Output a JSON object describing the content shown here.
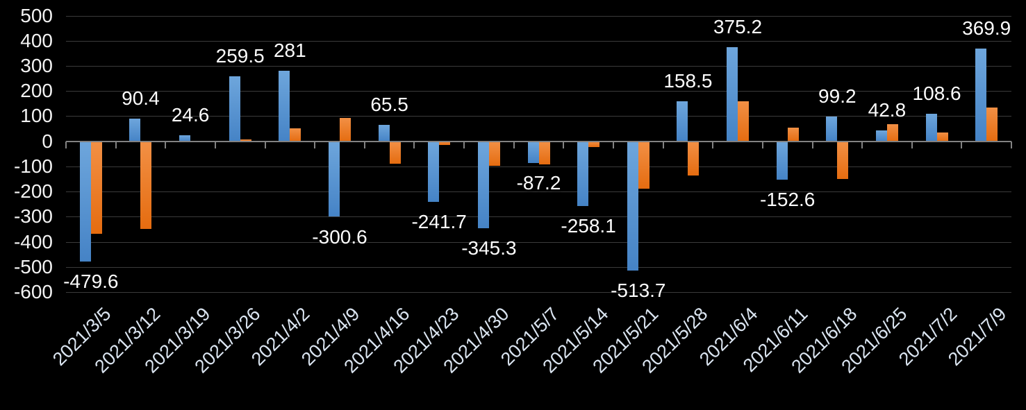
{
  "chart_data": {
    "type": "bar",
    "title": "",
    "legend_position": "none",
    "grid": true,
    "background": "#000000",
    "categories": [
      "2021/3/5",
      "2021/3/12",
      "2021/3/19",
      "2021/3/26",
      "2021/4/2",
      "2021/4/9",
      "2021/4/16",
      "2021/4/23",
      "2021/4/30",
      "2021/5/7",
      "2021/5/14",
      "2021/5/21",
      "2021/5/28",
      "2021/6/4",
      "2021/6/11",
      "2021/6/18",
      "2021/6/25",
      "2021/7/2",
      "2021/7/9"
    ],
    "series": [
      {
        "name": "blue",
        "color_top": "#6ea6dc",
        "color_bottom": "#4583c6",
        "values": [
          -479.6,
          90.4,
          24.6,
          259.5,
          281,
          -300.6,
          65.5,
          -241.7,
          -345.3,
          -87.2,
          -258.1,
          -513.7,
          158.5,
          375.2,
          -152.6,
          99.2,
          42.8,
          108.6,
          369.9
        ],
        "data_labels": [
          "-479.6",
          "90.4",
          "24.6",
          "259.5",
          "281",
          "-300.6",
          "65.5",
          "-241.7",
          "-345.3",
          "-87.2",
          "-258.1",
          "-513.7",
          "158.5",
          "375.2",
          "-152.6",
          "99.2",
          "42.8",
          "108.6",
          "369.9"
        ]
      },
      {
        "name": "orange",
        "color_top": "#f29045",
        "color_bottom": "#e56c10",
        "values": [
          -368,
          -348,
          -5,
          7,
          52,
          93,
          -89,
          -16,
          -98,
          -93,
          -24,
          -190,
          -137,
          159,
          53,
          -151,
          67,
          35,
          135
        ],
        "data_labels": null
      }
    ],
    "y_axis": {
      "min": -600,
      "max": 500,
      "step": 100,
      "tick_labels": [
        "500",
        "400",
        "300",
        "200",
        "100",
        "0",
        "-100",
        "-200",
        "-300",
        "-400",
        "-500",
        "-600"
      ]
    },
    "colors": {
      "gridline": "#3b3b3b",
      "axis_line": "#828282",
      "y_label": "#f2f2f2",
      "x_label": "#dbe5f1",
      "data_label": "#fdfdfd"
    }
  }
}
